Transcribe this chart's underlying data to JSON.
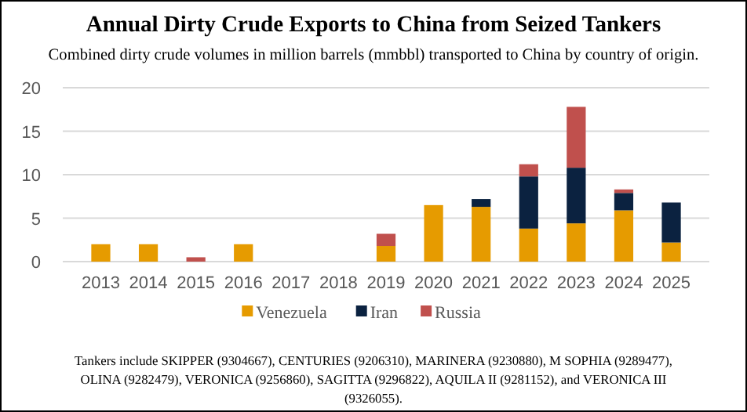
{
  "chart_data": {
    "type": "bar",
    "title": "Annual Dirty Crude Exports to China from Seized Tankers",
    "subtitle": "Combined dirty crude volumes in million barrels (mmbbl) transported to China by country of origin.",
    "categories": [
      "2013",
      "2014",
      "2015",
      "2016",
      "2017",
      "2018",
      "2019",
      "2020",
      "2021",
      "2022",
      "2023",
      "2024",
      "2025"
    ],
    "stacked": true,
    "series": [
      {
        "name": "Venezuela",
        "color": "#e69b00",
        "values": [
          2,
          2,
          0,
          2,
          0,
          0,
          1.8,
          6.5,
          6.3,
          3.8,
          4.4,
          5.9,
          2.2
        ]
      },
      {
        "name": "Iran",
        "color": "#0b2240",
        "values": [
          0,
          0,
          0,
          0,
          0,
          0,
          0,
          0,
          0.9,
          6,
          6.4,
          2,
          4.6
        ]
      },
      {
        "name": "Russia",
        "color": "#c0504d",
        "values": [
          0,
          0,
          0.5,
          0,
          0,
          0,
          1.4,
          0,
          0,
          1.4,
          7,
          0.4,
          0
        ]
      }
    ],
    "ylim": [
      0,
      20
    ],
    "yticks": [
      0,
      5,
      10,
      15,
      20
    ],
    "grid": "y",
    "legend": "bottom",
    "annotations": [
      "Tankers include SKIPPER (9304667), CENTURIES (9206310), MARINERA (9230880), M SOPHIA (9289477), OLINA (9282479), VERONICA (9256860), SAGITTA (9296822), AQUILA II (9281152), and VERONICA III (9326055)."
    ]
  }
}
